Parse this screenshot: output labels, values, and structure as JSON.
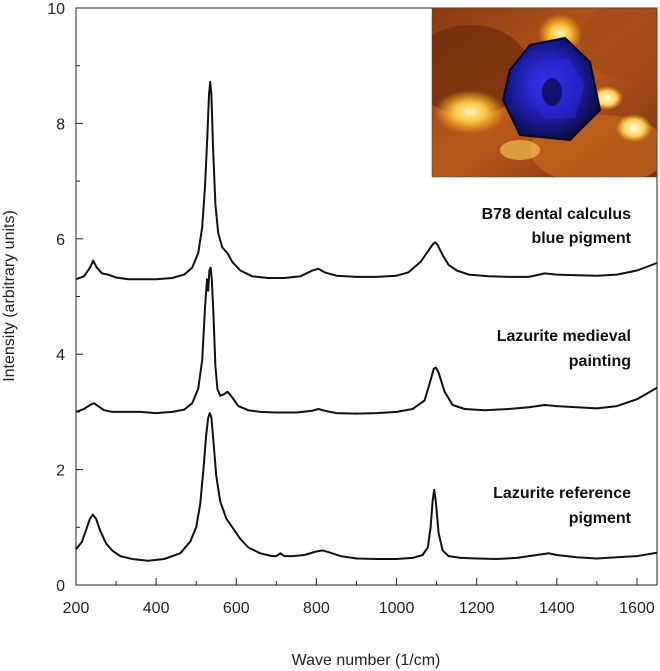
{
  "chart_data": {
    "type": "line",
    "title": "",
    "xlabel": "Wave number (1/cm)",
    "ylabel": "Intensity (arbitrary units)",
    "xlim": [
      200,
      1650
    ],
    "ylim": [
      0,
      10
    ],
    "xticks": [
      "200",
      "400",
      "600",
      "800",
      "1000",
      "1200",
      "1400",
      "1600"
    ],
    "yticks": [
      "0",
      "2",
      "4",
      "6",
      "8",
      "10"
    ],
    "grid": false,
    "legend": "none",
    "inset_image": "blue-crystal-photo",
    "series": [
      {
        "name": "B78 dental calculus blue pigment",
        "label_lines": [
          "B78 dental calculus",
          "blue pigment"
        ],
        "x": [
          200,
          220,
          235,
          243,
          252,
          265,
          280,
          300,
          330,
          360,
          400,
          440,
          470,
          490,
          505,
          515,
          522,
          528,
          532,
          535,
          538,
          542,
          548,
          555,
          565,
          578,
          590,
          610,
          640,
          680,
          720,
          760,
          790,
          805,
          820,
          850,
          900,
          950,
          1000,
          1030,
          1060,
          1080,
          1090,
          1096,
          1102,
          1115,
          1130,
          1150,
          1180,
          1230,
          1280,
          1330,
          1370,
          1400,
          1450,
          1500,
          1550,
          1600,
          1650
        ],
        "values": [
          5.3,
          5.35,
          5.5,
          5.62,
          5.5,
          5.4,
          5.38,
          5.33,
          5.3,
          5.3,
          5.3,
          5.32,
          5.38,
          5.5,
          5.75,
          6.2,
          6.9,
          7.8,
          8.5,
          8.72,
          8.5,
          7.6,
          6.6,
          6.1,
          5.85,
          5.75,
          5.6,
          5.45,
          5.35,
          5.32,
          5.32,
          5.35,
          5.45,
          5.48,
          5.42,
          5.36,
          5.34,
          5.34,
          5.36,
          5.42,
          5.6,
          5.8,
          5.9,
          5.94,
          5.9,
          5.72,
          5.55,
          5.45,
          5.38,
          5.35,
          5.34,
          5.34,
          5.4,
          5.38,
          5.37,
          5.36,
          5.38,
          5.45,
          5.58
        ]
      },
      {
        "name": "Lazurite medieval painting",
        "label_lines": [
          "Lazurite medieval",
          "painting"
        ],
        "x": [
          200,
          220,
          235,
          245,
          255,
          270,
          290,
          320,
          360,
          400,
          440,
          470,
          490,
          505,
          515,
          522,
          527,
          530,
          533,
          536,
          539,
          543,
          548,
          553,
          560,
          568,
          578,
          590,
          605,
          630,
          660,
          700,
          750,
          790,
          805,
          820,
          850,
          900,
          950,
          1000,
          1040,
          1070,
          1085,
          1093,
          1098,
          1105,
          1120,
          1140,
          1170,
          1220,
          1280,
          1330,
          1370,
          1400,
          1450,
          1500,
          1550,
          1600,
          1650
        ],
        "values": [
          3.0,
          3.05,
          3.12,
          3.15,
          3.1,
          3.03,
          3.0,
          3.0,
          3.0,
          2.98,
          3.0,
          3.04,
          3.15,
          3.4,
          3.9,
          4.8,
          5.3,
          5.1,
          5.45,
          5.5,
          5.3,
          4.7,
          3.8,
          3.4,
          3.28,
          3.3,
          3.35,
          3.25,
          3.1,
          3.03,
          3.0,
          2.99,
          2.99,
          3.02,
          3.05,
          3.02,
          2.98,
          2.97,
          2.98,
          3.0,
          3.05,
          3.2,
          3.55,
          3.75,
          3.77,
          3.68,
          3.35,
          3.12,
          3.05,
          3.03,
          3.05,
          3.08,
          3.12,
          3.1,
          3.08,
          3.06,
          3.1,
          3.22,
          3.42
        ]
      },
      {
        "name": "Lazurite reference pigment",
        "label_lines": [
          "Lazurite reference",
          "pigment"
        ],
        "x": [
          200,
          215,
          225,
          235,
          242,
          250,
          260,
          275,
          290,
          310,
          340,
          380,
          420,
          460,
          485,
          500,
          510,
          518,
          525,
          530,
          534,
          538,
          543,
          550,
          560,
          575,
          590,
          610,
          630,
          660,
          690,
          700,
          710,
          720,
          740,
          770,
          800,
          815,
          830,
          860,
          900,
          950,
          1000,
          1040,
          1065,
          1078,
          1085,
          1090,
          1094,
          1098,
          1105,
          1115,
          1130,
          1160,
          1200,
          1250,
          1300,
          1350,
          1380,
          1400,
          1450,
          1500,
          1550,
          1600,
          1650
        ],
        "values": [
          0.62,
          0.75,
          0.95,
          1.15,
          1.22,
          1.15,
          0.95,
          0.72,
          0.6,
          0.5,
          0.45,
          0.42,
          0.45,
          0.55,
          0.75,
          1.0,
          1.4,
          2.0,
          2.6,
          2.9,
          2.98,
          2.9,
          2.5,
          1.9,
          1.45,
          1.15,
          1.0,
          0.8,
          0.65,
          0.55,
          0.5,
          0.5,
          0.55,
          0.5,
          0.5,
          0.52,
          0.58,
          0.6,
          0.57,
          0.5,
          0.46,
          0.45,
          0.45,
          0.47,
          0.52,
          0.65,
          1.0,
          1.45,
          1.65,
          1.45,
          0.9,
          0.6,
          0.5,
          0.47,
          0.46,
          0.45,
          0.47,
          0.52,
          0.55,
          0.52,
          0.48,
          0.46,
          0.48,
          0.5,
          0.56
        ]
      }
    ]
  }
}
